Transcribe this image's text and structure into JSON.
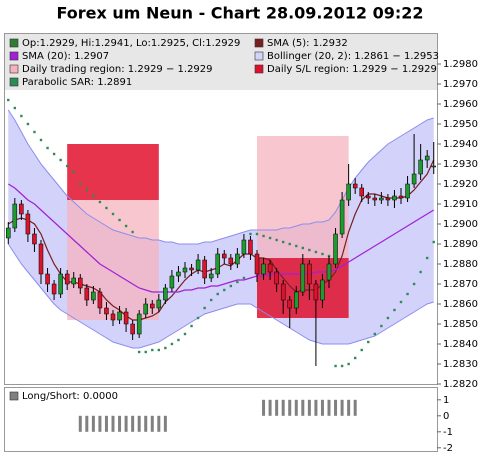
{
  "chart_data": [
    {
      "type": "candlestick",
      "title": "Forex um Neun - Chart 28.09.2012 09:22",
      "ohlc_name": "Op:1.2929, Hi:1.2941, Lo:1.2925, Cl:1.2929",
      "ohlc_color": "#2e7d32",
      "color_up": "#1f9a2f",
      "color_down": "#d8152a",
      "open": [
        1.2893,
        1.2898,
        1.291,
        1.2905,
        1.2895,
        1.289,
        1.2875,
        1.287,
        1.2865,
        1.2875,
        1.287,
        1.2873,
        1.2868,
        1.2862,
        1.2866,
        1.2858,
        1.2855,
        1.2852,
        1.2856,
        1.285,
        1.2845,
        1.2855,
        1.286,
        1.2858,
        1.2862,
        1.2868,
        1.2874,
        1.2876,
        1.2878,
        1.2877,
        1.2882,
        1.2873,
        1.2875,
        1.2885,
        1.2883,
        1.288,
        1.2885,
        1.2892,
        1.2885,
        1.2875,
        1.288,
        1.2876,
        1.287,
        1.2862,
        1.2858,
        1.2866,
        1.288,
        1.287,
        1.2862,
        1.2872,
        1.288,
        1.2895,
        1.2912,
        1.292,
        1.2918,
        1.2914,
        1.2913,
        1.2912,
        1.2913,
        1.2912,
        1.2914,
        1.2913,
        1.292,
        1.2925,
        1.2932,
        1.2929
      ],
      "high": [
        1.2901,
        1.2913,
        1.2912,
        1.2907,
        1.2898,
        1.2892,
        1.2878,
        1.2872,
        1.2878,
        1.2877,
        1.2876,
        1.2875,
        1.287,
        1.2869,
        1.2868,
        1.2861,
        1.2857,
        1.2859,
        1.2858,
        1.2852,
        1.2857,
        1.2863,
        1.2862,
        1.2865,
        1.287,
        1.2877,
        1.2879,
        1.2881,
        1.288,
        1.2885,
        1.2884,
        1.2878,
        1.2888,
        1.2887,
        1.2885,
        1.2888,
        1.2895,
        1.2894,
        1.2887,
        1.2883,
        1.2882,
        1.2878,
        1.2872,
        1.2864,
        1.2869,
        1.2885,
        1.2882,
        1.2872,
        1.2875,
        1.2884,
        1.2898,
        1.2916,
        1.293,
        1.2923,
        1.292,
        1.2916,
        1.2915,
        1.2916,
        1.2915,
        1.2917,
        1.2918,
        1.2924,
        1.2945,
        1.294,
        1.2937,
        1.2941
      ],
      "low": [
        1.289,
        1.2896,
        1.2902,
        1.2891,
        1.2886,
        1.287,
        1.2866,
        1.2862,
        1.2863,
        1.2867,
        1.2868,
        1.2865,
        1.2859,
        1.286,
        1.2855,
        1.2852,
        1.2849,
        1.285,
        1.2846,
        1.2842,
        1.2843,
        1.2853,
        1.2855,
        1.2856,
        1.286,
        1.2866,
        1.2871,
        1.2873,
        1.2874,
        1.2875,
        1.287,
        1.2871,
        1.2873,
        1.288,
        1.2877,
        1.2878,
        1.2883,
        1.2882,
        1.2871,
        1.2872,
        1.2872,
        1.2866,
        1.2855,
        1.2848,
        1.2855,
        1.2864,
        1.2862,
        1.2829,
        1.2858,
        1.2868,
        1.2878,
        1.2893,
        1.2909,
        1.2915,
        1.2911,
        1.291,
        1.2909,
        1.291,
        1.2909,
        1.2908,
        1.291,
        1.2911,
        1.2918,
        1.2922,
        1.2928,
        1.2925
      ],
      "close": [
        1.2898,
        1.291,
        1.2905,
        1.2895,
        1.289,
        1.2875,
        1.287,
        1.2865,
        1.2875,
        1.287,
        1.2873,
        1.2868,
        1.2862,
        1.2866,
        1.2858,
        1.2855,
        1.2852,
        1.2856,
        1.285,
        1.2845,
        1.2855,
        1.286,
        1.2858,
        1.2862,
        1.2868,
        1.2874,
        1.2876,
        1.2878,
        1.2877,
        1.2882,
        1.2873,
        1.2875,
        1.2885,
        1.2883,
        1.288,
        1.2885,
        1.2892,
        1.2885,
        1.2875,
        1.288,
        1.2876,
        1.287,
        1.2862,
        1.2858,
        1.2866,
        1.288,
        1.287,
        1.2862,
        1.2872,
        1.288,
        1.2895,
        1.2912,
        1.292,
        1.2918,
        1.2914,
        1.2913,
        1.2912,
        1.2913,
        1.2912,
        1.2914,
        1.2913,
        1.292,
        1.2925,
        1.2932,
        1.2934,
        1.2929
      ],
      "lines": [
        {
          "name": "SMA (5): 1.2932",
          "color": "#7a1f1f",
          "values": [
            1.29,
            1.2902,
            1.2903,
            1.2902,
            1.29,
            1.2895,
            1.2887,
            1.288,
            1.2875,
            1.2871,
            1.2871,
            1.287,
            1.2869,
            1.2868,
            1.2866,
            1.2862,
            1.2859,
            1.2857,
            1.2854,
            1.2852,
            1.2852,
            1.2853,
            1.2854,
            1.2856,
            1.2861,
            1.2864,
            1.2868,
            1.2872,
            1.2875,
            1.2877,
            1.2876,
            1.2877,
            1.2878,
            1.288,
            1.2879,
            1.2882,
            1.2885,
            1.2885,
            1.2883,
            1.2883,
            1.2882,
            1.2877,
            1.2873,
            1.2869,
            1.2866,
            1.2867,
            1.2867,
            1.2867,
            1.287,
            1.2872,
            1.2876,
            1.2884,
            1.2896,
            1.2905,
            1.2912,
            1.2915,
            1.2915,
            1.2914,
            1.2913,
            1.2913,
            1.2913,
            1.2914,
            1.2917,
            1.2921,
            1.2925,
            1.2932
          ]
        },
        {
          "name": "SMA (20): 1.2907",
          "color": "#a21fd8",
          "values": [
            1.292,
            1.2918,
            1.2915,
            1.2912,
            1.291,
            1.2907,
            1.2904,
            1.2901,
            1.2898,
            1.2895,
            1.2892,
            1.2889,
            1.2886,
            1.2883,
            1.288,
            1.2878,
            1.2876,
            1.2874,
            1.2872,
            1.287,
            1.2868,
            1.2867,
            1.2866,
            1.2866,
            1.2866,
            1.2866,
            1.2866,
            1.2867,
            1.2867,
            1.2868,
            1.2868,
            1.2869,
            1.2869,
            1.287,
            1.2871,
            1.2872,
            1.2872,
            1.2873,
            1.2874,
            1.2874,
            1.2875,
            1.2875,
            1.2875,
            1.2875,
            1.2875,
            1.2875,
            1.2875,
            1.2876,
            1.2876,
            1.2876,
            1.2877,
            1.2879,
            1.2881,
            1.2883,
            1.2885,
            1.2887,
            1.2889,
            1.2891,
            1.2893,
            1.2895,
            1.2897,
            1.2899,
            1.2901,
            1.2903,
            1.2905,
            1.2907
          ]
        }
      ],
      "bollinger": {
        "name": "Bollinger (20, 2): 1.2861 − 1.2953",
        "color": "#8c8cf0",
        "fill": "#d2d2fa",
        "upper": [
          1.2957,
          1.2952,
          1.2946,
          1.294,
          1.2935,
          1.293,
          1.2926,
          1.2922,
          1.2918,
          1.2914,
          1.2911,
          1.2908,
          1.2905,
          1.2903,
          1.2901,
          1.2899,
          1.2897,
          1.2896,
          1.2895,
          1.2894,
          1.2893,
          1.2893,
          1.2892,
          1.2892,
          1.2891,
          1.2891,
          1.289,
          1.289,
          1.289,
          1.289,
          1.2891,
          1.2891,
          1.2892,
          1.2893,
          1.2894,
          1.2895,
          1.2896,
          1.2897,
          1.2897,
          1.2897,
          1.2897,
          1.2897,
          1.2898,
          1.2898,
          1.2899,
          1.29,
          1.29,
          1.2901,
          1.2901,
          1.2902,
          1.2906,
          1.2912,
          1.2918,
          1.2923,
          1.2927,
          1.2931,
          1.2934,
          1.2937,
          1.294,
          1.2942,
          1.2944,
          1.2946,
          1.2948,
          1.295,
          1.2952,
          1.2953
        ],
        "lower": [
          1.289,
          1.2885,
          1.288,
          1.2876,
          1.2872,
          1.2868,
          1.2864,
          1.286,
          1.2857,
          1.2855,
          1.2853,
          1.2851,
          1.2849,
          1.2847,
          1.2845,
          1.2843,
          1.2841,
          1.284,
          1.2839,
          1.2838,
          1.2838,
          1.2839,
          1.284,
          1.2841,
          1.2843,
          1.2845,
          1.2847,
          1.2849,
          1.2851,
          1.2853,
          1.2855,
          1.2856,
          1.2857,
          1.2858,
          1.2859,
          1.286,
          1.286,
          1.286,
          1.2858,
          1.2856,
          1.2854,
          1.2852,
          1.285,
          1.2848,
          1.2846,
          1.2844,
          1.2842,
          1.2841,
          1.284,
          1.284,
          1.284,
          1.284,
          1.284,
          1.2841,
          1.2842,
          1.2843,
          1.2844,
          1.2846,
          1.2848,
          1.285,
          1.2852,
          1.2854,
          1.2856,
          1.2858,
          1.286,
          1.2861
        ]
      },
      "trading_region": {
        "name": "Daily trading region: 1.2929 − 1.2929",
        "color": "#f6b3bd",
        "days": [
          {
            "start": 9,
            "end": 23,
            "low": 1.2852,
            "high": 1.2912
          },
          {
            "start": 38,
            "end": 52,
            "low": 1.2883,
            "high": 1.2944
          }
        ]
      },
      "sl_region": {
        "name": "Daily S/L region: 1.2929 − 1.2929",
        "color": "#e0102c",
        "days": [
          {
            "start": 9,
            "end": 23,
            "low": 1.2912,
            "high": 1.294
          },
          {
            "start": 38,
            "end": 52,
            "low": 1.2853,
            "high": 1.2883
          }
        ]
      },
      "sar": {
        "name": "Parabolic SAR: 1.2891",
        "color": "#2e8b57",
        "values": [
          1.2962,
          1.2958,
          1.2954,
          1.295,
          1.2946,
          1.2942,
          1.2938,
          1.2935,
          1.2932,
          1.2929,
          1.2926,
          1.292,
          1.2917,
          1.2914,
          1.2911,
          1.2908,
          1.2905,
          1.2902,
          1.2899,
          1.2896,
          1.2836,
          1.2836,
          1.2837,
          1.2837,
          1.2838,
          1.284,
          1.2842,
          1.2845,
          1.2849,
          1.2853,
          1.2858,
          1.2862,
          1.2865,
          1.2867,
          1.2869,
          1.2871,
          1.2873,
          1.2895,
          1.2895,
          1.2894,
          1.2893,
          1.2892,
          1.2891,
          1.289,
          1.2889,
          1.2888,
          1.2887,
          1.2886,
          1.2885,
          1.2884,
          1.2829,
          1.2829,
          1.283,
          1.2833,
          1.2837,
          1.2841,
          1.2845,
          1.2849,
          1.2853,
          1.2857,
          1.2861,
          1.2865,
          1.287,
          1.2876,
          1.2883,
          1.2891
        ]
      },
      "ylim": [
        1.282,
        1.2995
      ],
      "yticks": [
        {
          "value": 1.282,
          "label": "1.2820"
        },
        {
          "value": 1.283,
          "label": "1.2830"
        },
        {
          "value": 1.284,
          "label": "1.2840"
        },
        {
          "value": 1.285,
          "label": "1.2850"
        },
        {
          "value": 1.286,
          "label": "1.2860"
        },
        {
          "value": 1.287,
          "label": "1.2870"
        },
        {
          "value": 1.288,
          "label": "1.2880"
        },
        {
          "value": 1.289,
          "label": "1.2890"
        },
        {
          "value": 1.29,
          "label": "1.2900"
        },
        {
          "value": 1.291,
          "label": "1.2910"
        },
        {
          "value": 1.292,
          "label": "1.2920"
        },
        {
          "value": 1.293,
          "label": "1.2930"
        },
        {
          "value": 1.294,
          "label": "1.2940"
        },
        {
          "value": 1.295,
          "label": "1.2950"
        },
        {
          "value": 1.296,
          "label": "1.2960"
        },
        {
          "value": 1.297,
          "label": "1.2970"
        },
        {
          "value": 1.298,
          "label": "1.2980"
        }
      ]
    },
    {
      "type": "bar",
      "name": "Long/Short: 0.0000",
      "color": "#808080",
      "values": [
        0,
        0,
        0,
        0,
        0,
        0,
        0,
        0,
        0,
        0,
        0,
        -1,
        -1,
        -1,
        -1,
        -1,
        -1,
        -1,
        -1,
        -1,
        -1,
        -1,
        -1,
        -1,
        -1,
        0,
        0,
        0,
        0,
        0,
        0,
        0,
        0,
        0,
        0,
        0,
        0,
        0,
        0,
        1,
        1,
        1,
        1,
        1,
        1,
        1,
        1,
        1,
        1,
        1,
        1,
        1,
        1,
        1,
        0,
        0,
        0,
        0,
        0,
        0,
        0,
        0,
        0,
        0,
        0,
        0
      ],
      "ylim": [
        -2.2,
        1.8
      ],
      "yticks": [
        1,
        0,
        -1,
        -2
      ]
    }
  ]
}
